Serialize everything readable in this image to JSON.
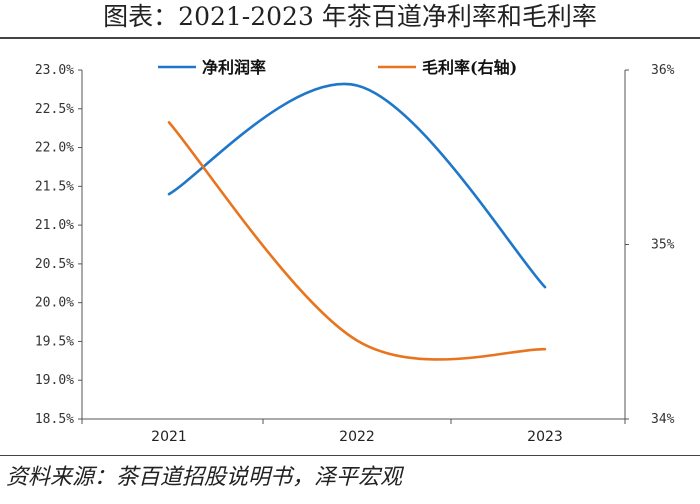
{
  "title": "图表：2021-2023 年茶百道净利率和毛利率",
  "source": "资料来源：茶百道招股说明书，泽平宏观",
  "chart_data": {
    "type": "line",
    "title": "图表：2021-2023 年茶百道净利率和毛利率",
    "categories": [
      "2021",
      "2022",
      "2023"
    ],
    "y_left": {
      "min": 18.5,
      "max": 23.0,
      "ticks": [
        "23.0%",
        "22.5%",
        "22.0%",
        "21.5%",
        "21.0%",
        "20.5%",
        "20.0%",
        "19.5%",
        "19.0%",
        "18.5%"
      ],
      "tick_values": [
        23.0,
        22.5,
        22.0,
        21.5,
        21.0,
        20.5,
        20.0,
        19.5,
        19.0,
        18.5
      ]
    },
    "y_right": {
      "min": 34,
      "max": 36,
      "ticks": [
        "36%",
        "35%",
        "34%"
      ],
      "tick_values": [
        36,
        35,
        34
      ]
    },
    "series": [
      {
        "name": "净利润率",
        "axis": "left",
        "color": "#1f77c9",
        "values": [
          21.4,
          22.8,
          20.2
        ]
      },
      {
        "name": "毛利率(右轴)",
        "axis": "right",
        "color": "#e8741f",
        "values": [
          35.7,
          34.45,
          34.4
        ]
      }
    ],
    "grid": false,
    "legend_position": "top"
  }
}
